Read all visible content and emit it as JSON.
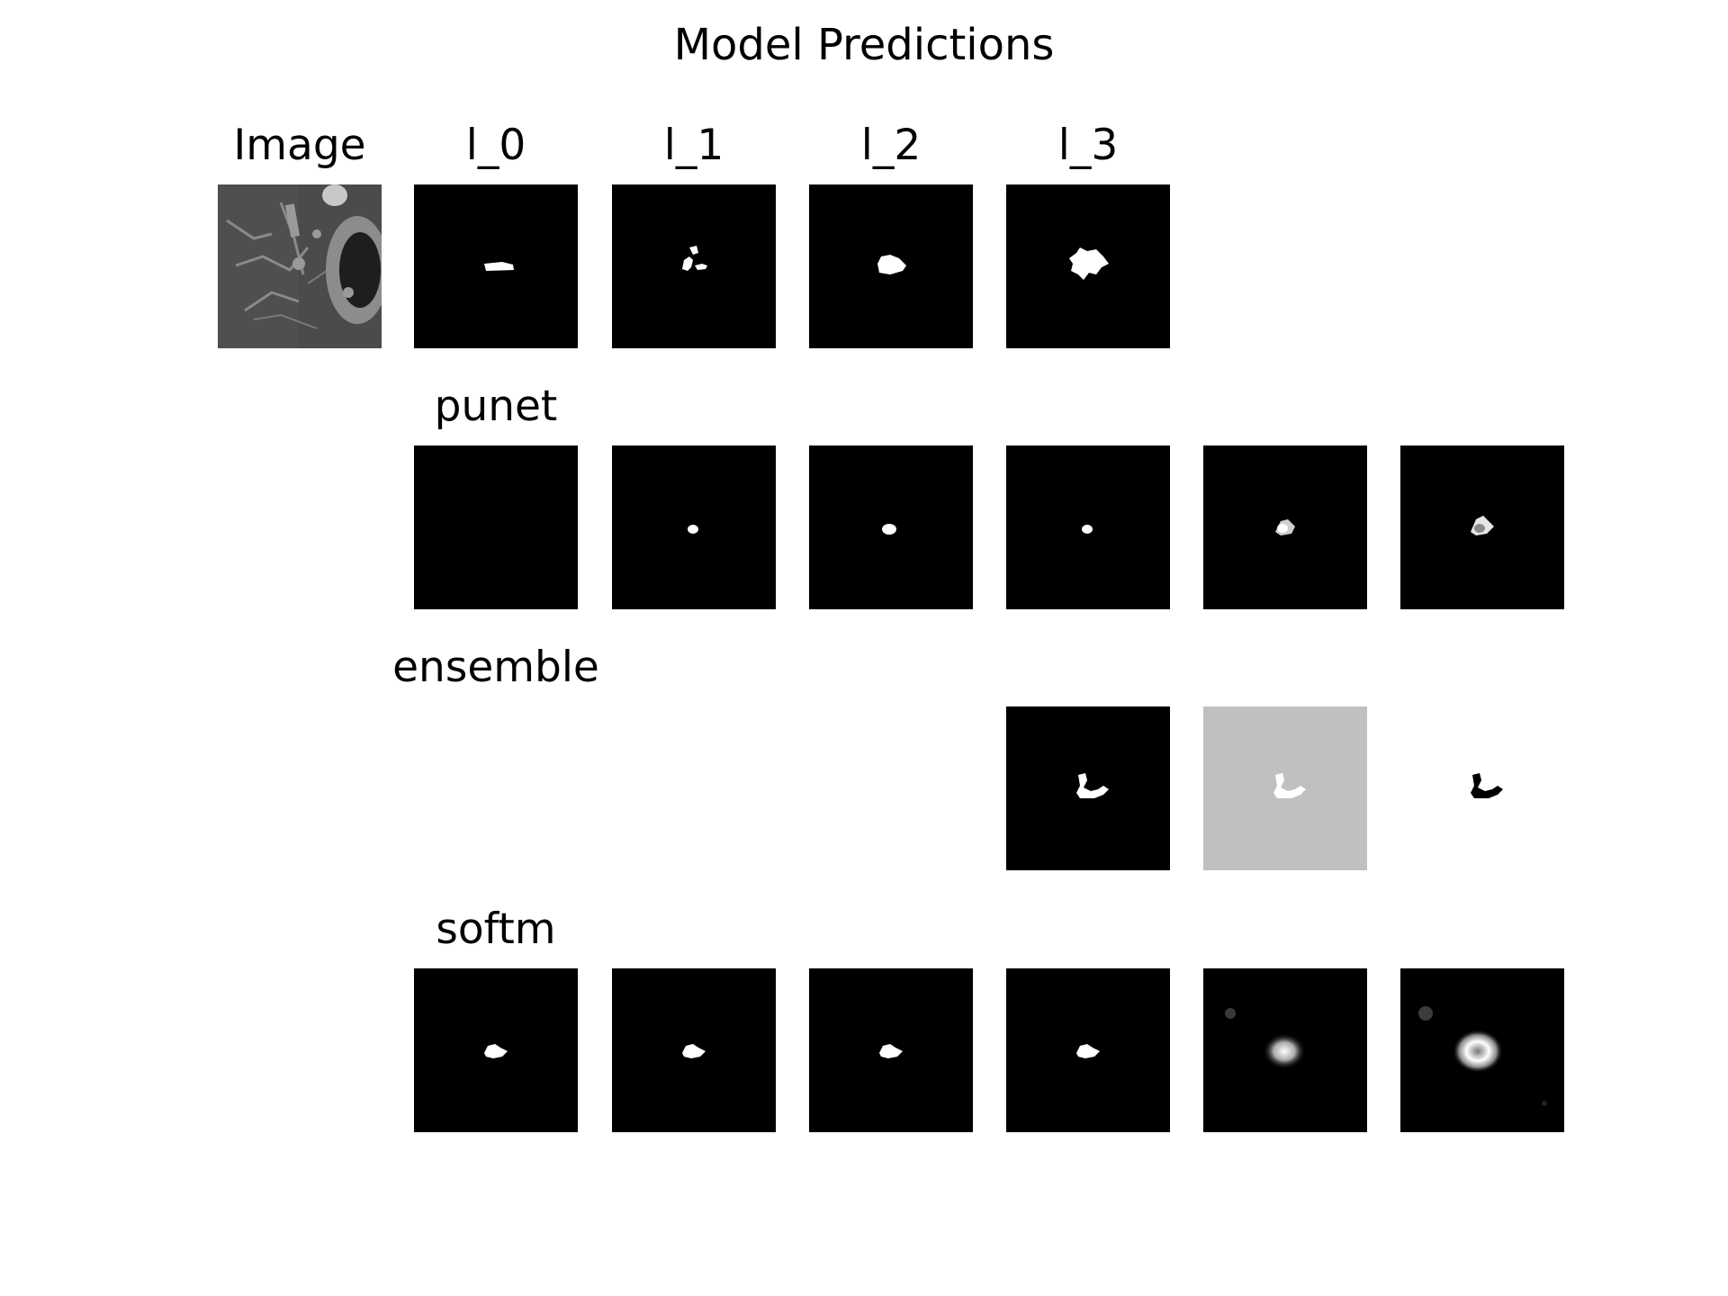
{
  "figure": {
    "title": "Model Predictions"
  },
  "row_labels": {
    "image": "Image",
    "l_0": "l_0",
    "l_1": "l_1",
    "l_2": "l_2",
    "l_3": "l_3",
    "punet": "punet",
    "ensemble": "ensemble",
    "softm": "softm"
  },
  "colors": {
    "mask_background": "#000000",
    "mask_foreground": "#ffffff",
    "gray_panel": "#c0c0c0",
    "figure_background": "#ffffff"
  }
}
